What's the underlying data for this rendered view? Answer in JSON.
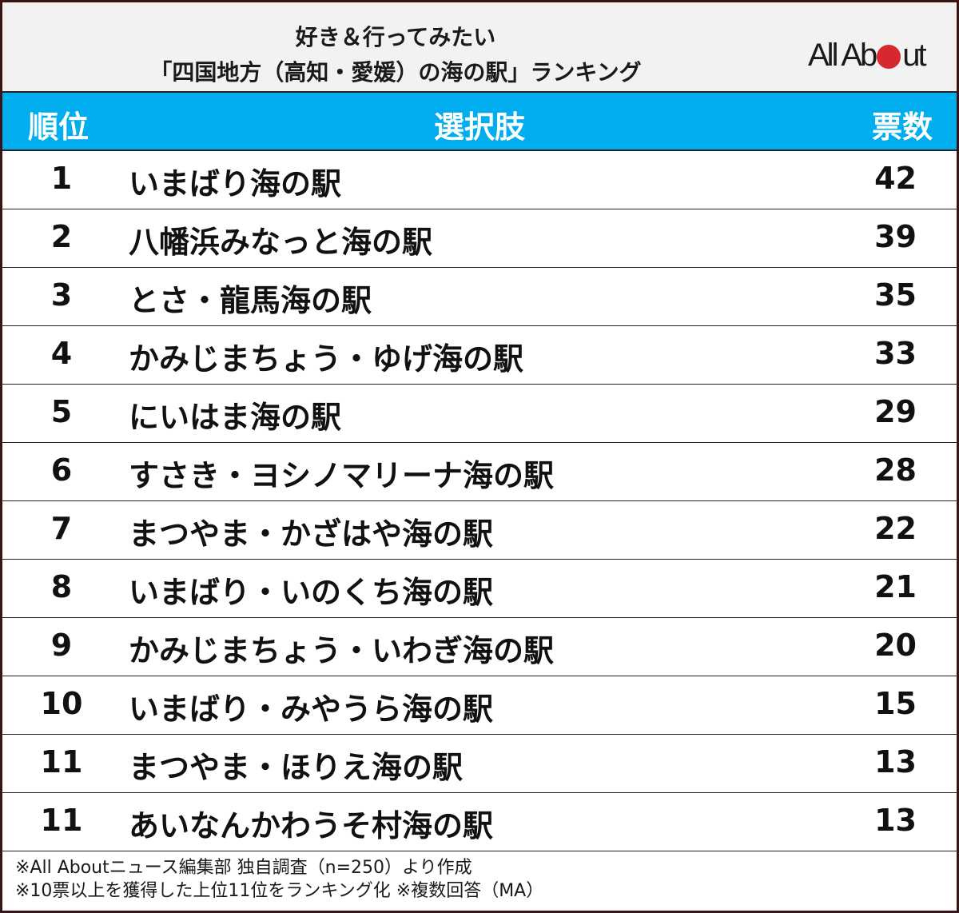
{
  "title": {
    "line1": "好き＆行ってみたい",
    "line2": "「四国地方（高知・愛媛）の海の駅」ランキング"
  },
  "logo": {
    "text_before": "All Ab",
    "text_after": "ut",
    "dot_color": "#d7282f"
  },
  "table": {
    "headers": {
      "rank": "順位",
      "choice": "選択肢",
      "votes": "票数"
    },
    "header_color": "#00aeef",
    "rows": [
      {
        "rank": "1",
        "name": "いまばり海の駅",
        "votes": "42"
      },
      {
        "rank": "2",
        "name": "八幡浜みなっと海の駅",
        "votes": "39"
      },
      {
        "rank": "3",
        "name": "とさ・龍馬海の駅",
        "votes": "35"
      },
      {
        "rank": "4",
        "name": "かみじまちょう・ゆげ海の駅",
        "votes": "33"
      },
      {
        "rank": "5",
        "name": "にいはま海の駅",
        "votes": "29"
      },
      {
        "rank": "6",
        "name": "すさき・ヨシノマリーナ海の駅",
        "votes": "28"
      },
      {
        "rank": "7",
        "name": "まつやま・かざはや海の駅",
        "votes": "22"
      },
      {
        "rank": "8",
        "name": "いまばり・いのくち海の駅",
        "votes": "21"
      },
      {
        "rank": "9",
        "name": "かみじまちょう・いわぎ海の駅",
        "votes": "20"
      },
      {
        "rank": "10",
        "name": "いまばり・みやうら海の駅",
        "votes": "15"
      },
      {
        "rank": "11",
        "name": "まつやま・ほりえ海の駅",
        "votes": "13"
      },
      {
        "rank": "11",
        "name": "あいなんかわうそ村海の駅",
        "votes": "13"
      }
    ]
  },
  "footer": {
    "note1": "※All Aboutニュース編集部 独自調査（n=250）より作成",
    "note2": "※10票以上を獲得した上位11位をランキング化 ※複数回答（MA）"
  }
}
